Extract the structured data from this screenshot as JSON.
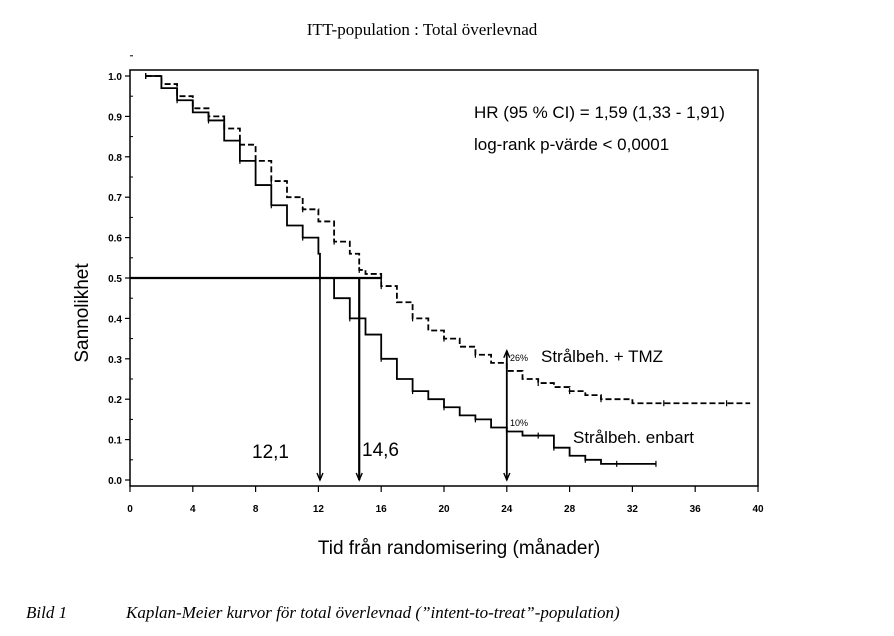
{
  "title": "ITT-population : Total överlevnad",
  "caption": {
    "number": "Bild 1",
    "text": "Kaplan-Meier kurvor för total överlevnad (”intent-to-treat”-population)"
  },
  "chart_data": {
    "type": "line",
    "title": "ITT-population : Total överlevnad",
    "xlabel": "Tid från randomisering (månader)",
    "ylabel": "Sannolikhet",
    "xlim": [
      0,
      40
    ],
    "ylim": [
      0,
      1
    ],
    "xticks": [
      "0",
      "4",
      "8",
      "12",
      "16",
      "20",
      "24",
      "28",
      "32",
      "36",
      "40"
    ],
    "yticks": [
      "0.0",
      "0.1",
      "0.2",
      "0.3",
      "0.4",
      "0.5",
      "0.6",
      "0.7",
      "0.8",
      "0.9",
      "1.0"
    ],
    "grid": false,
    "annotations": {
      "hr": "HR (95 % CI) = 1,59 (1,33 - 1,91)",
      "logrank": "log-rank p-värde < 0,0001",
      "median_radiation_only": "12,1",
      "median_radiation_tmz": "14,6",
      "pct_24_tmz": "26%",
      "pct_24_rt": "10%"
    },
    "series": [
      {
        "name": "Strålbeh. + TMZ",
        "style": "dashed",
        "x": [
          1,
          2,
          3,
          4,
          5,
          6,
          7,
          8,
          9,
          10,
          11,
          12,
          13,
          14,
          14.6,
          15,
          16,
          17,
          18,
          19,
          20,
          21,
          22,
          23,
          24,
          25,
          26,
          27,
          28,
          29,
          30,
          32,
          34,
          36,
          38,
          39.5
        ],
        "y": [
          1.0,
          0.98,
          0.95,
          0.92,
          0.9,
          0.87,
          0.83,
          0.79,
          0.74,
          0.7,
          0.67,
          0.64,
          0.59,
          0.56,
          0.52,
          0.51,
          0.48,
          0.44,
          0.4,
          0.37,
          0.35,
          0.33,
          0.31,
          0.29,
          0.27,
          0.25,
          0.24,
          0.23,
          0.22,
          0.21,
          0.2,
          0.19,
          0.19,
          0.19,
          0.19,
          0.19
        ]
      },
      {
        "name": "Strålbeh. enbart",
        "style": "solid",
        "x": [
          1,
          2,
          3,
          4,
          5,
          6,
          7,
          8,
          9,
          10,
          11,
          12,
          12.1,
          13,
          14,
          15,
          16,
          17,
          18,
          19,
          20,
          21,
          22,
          23,
          24,
          25,
          26,
          26.5,
          27,
          28,
          29,
          30,
          31,
          32,
          33.5
        ],
        "y": [
          1.0,
          0.97,
          0.94,
          0.91,
          0.89,
          0.84,
          0.79,
          0.73,
          0.68,
          0.63,
          0.6,
          0.56,
          0.5,
          0.45,
          0.4,
          0.36,
          0.3,
          0.25,
          0.22,
          0.2,
          0.18,
          0.16,
          0.15,
          0.13,
          0.12,
          0.11,
          0.11,
          0.11,
          0.08,
          0.06,
          0.05,
          0.04,
          0.04,
          0.04,
          0.04
        ]
      }
    ]
  }
}
